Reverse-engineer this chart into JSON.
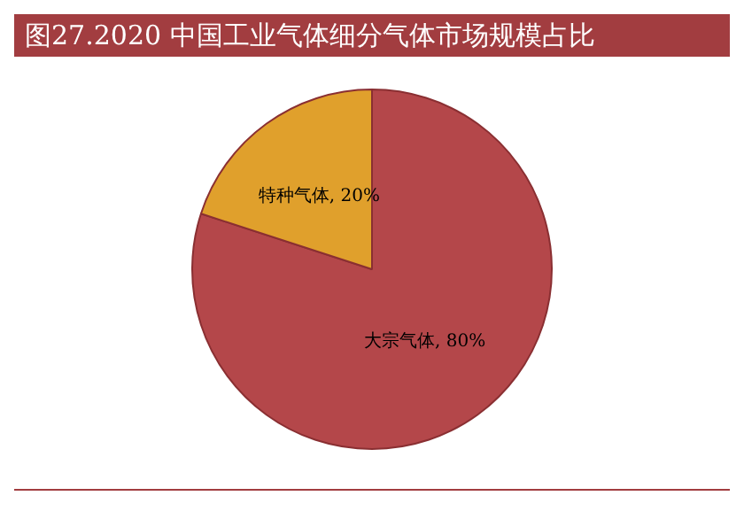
{
  "chart_data": {
    "type": "pie",
    "title": "图27.2020 中国工业气体细分气体市场规模占比",
    "categories": [
      "大宗气体",
      "特种气体"
    ],
    "values": [
      80,
      20
    ],
    "colors": [
      "#b4474a",
      "#e0a02c"
    ],
    "value_labels": [
      "80%",
      "20%"
    ],
    "legend": false
  }
}
